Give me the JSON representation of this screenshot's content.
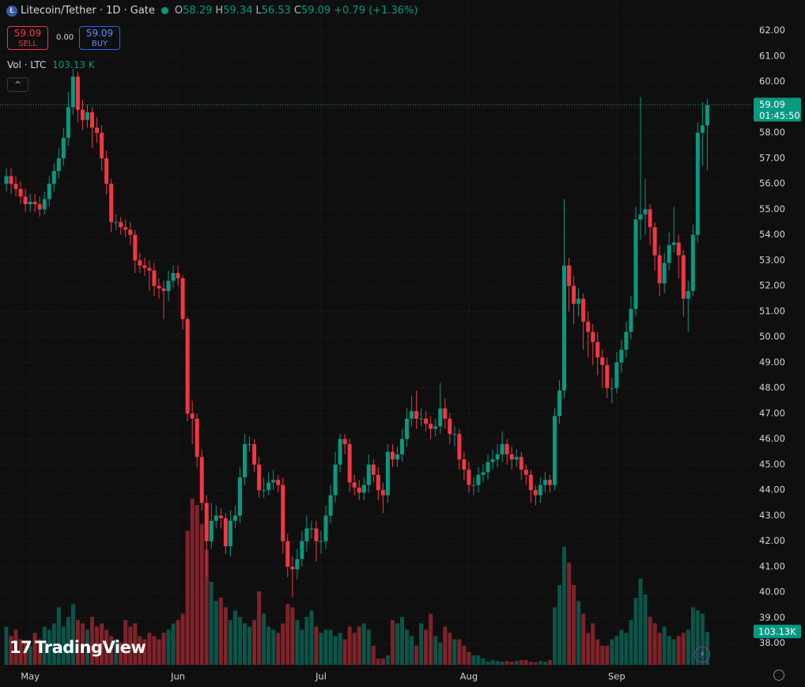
{
  "chart_data": {
    "type": "candlestick",
    "title": "Litecoin/Tether · 1D · Gate",
    "legend": {
      "o_label": "O",
      "open": 58.29,
      "h_label": "H",
      "high": 59.34,
      "l_label": "L",
      "low": 56.53,
      "c_label": "C",
      "close": 59.09,
      "change": "+0.79 (+1.36%)"
    },
    "trade_panel": {
      "sell_price": "59.09",
      "sell_label": "SELL",
      "spread": "0.00",
      "buy_price": "59.09",
      "buy_label": "BUY"
    },
    "volume_legend": {
      "label": "Vol · LTC",
      "value": "103.13 K"
    },
    "last_price_tag": {
      "price": "59.09",
      "countdown": "01:45:50"
    },
    "volume_tag": "103.13K",
    "brand": "TradingView",
    "up_color": "#089981",
    "down_color": "#f23645",
    "ylim": [
      37.0,
      63.2
    ],
    "yticks": [
      {
        "value": 38,
        "label": "38.00"
      },
      {
        "value": 39,
        "label": "39.00"
      },
      {
        "value": 40,
        "label": "40.00"
      },
      {
        "value": 41,
        "label": "41.00"
      },
      {
        "value": 42,
        "label": "42.00"
      },
      {
        "value": 43,
        "label": "43.00"
      },
      {
        "value": 44,
        "label": "44.00"
      },
      {
        "value": 45,
        "label": "45.00"
      },
      {
        "value": 46,
        "label": "46.00"
      },
      {
        "value": 47,
        "label": "47.00"
      },
      {
        "value": 48,
        "label": "48.00"
      },
      {
        "value": 49,
        "label": "49.00"
      },
      {
        "value": 50,
        "label": "50.00"
      },
      {
        "value": 51,
        "label": "51.00"
      },
      {
        "value": 52,
        "label": "52.00"
      },
      {
        "value": 53,
        "label": "53.00"
      },
      {
        "value": 54,
        "label": "54.00"
      },
      {
        "value": 55,
        "label": "55.00"
      },
      {
        "value": 56,
        "label": "56.00"
      },
      {
        "value": 57,
        "label": "57.00"
      },
      {
        "value": 58,
        "label": "58.00"
      },
      {
        "value": 59,
        "label": "59.00"
      },
      {
        "value": 60,
        "label": "60.00"
      },
      {
        "value": 61,
        "label": "61.00"
      },
      {
        "value": 62,
        "label": "62.00"
      }
    ],
    "xticks": [
      {
        "value": 5,
        "label": "May"
      },
      {
        "value": 36,
        "label": "Jun"
      },
      {
        "value": 66,
        "label": "Jul"
      },
      {
        "value": 97,
        "label": "Aug"
      },
      {
        "value": 128,
        "label": "Sep"
      }
    ],
    "grid": true,
    "open": [
      56.0,
      56.3,
      56.0,
      55.8,
      55.5,
      55.2,
      55.3,
      55.2,
      55.0,
      55.4,
      56.0,
      56.5,
      57.0,
      57.8,
      59.0,
      60.2,
      58.9,
      58.5,
      58.8,
      58.2,
      58.0,
      57.0,
      56.0,
      54.5,
      54.5,
      54.3,
      54.2,
      54.0,
      53.0,
      52.8,
      52.7,
      52.6,
      52.0,
      51.9,
      51.8,
      52.2,
      52.5,
      52.3,
      50.7,
      47.0,
      46.8,
      45.3,
      43.5,
      42.0,
      42.8,
      43.0,
      42.9,
      41.8,
      42.8,
      43.0,
      44.5,
      45.8,
      45.8,
      45.0,
      44.0,
      44.0,
      44.3,
      44.4,
      44.2,
      42.0,
      41.0,
      40.9,
      41.3,
      42.0,
      42.5,
      42.5,
      42.0,
      42.0,
      43.0,
      43.8,
      45.0,
      46.0,
      45.8,
      44.3,
      44.1,
      43.9,
      44.2,
      45.0,
      44.6,
      44.0,
      43.8,
      45.5,
      45.2,
      45.4,
      46.0,
      46.8,
      47.1,
      46.8,
      46.8,
      46.6,
      46.4,
      46.5,
      47.2,
      46.8,
      46.2,
      46.2,
      45.2,
      44.8,
      44.2,
      44.2,
      44.6,
      44.7,
      45.1,
      45.2,
      45.4,
      45.8,
      45.4,
      45.2,
      45.3,
      44.8,
      44.6,
      44.0,
      43.8,
      44.2,
      44.4,
      44.2,
      46.9,
      47.9,
      52.8,
      52.0,
      51.3,
      51.5,
      50.6,
      50.2,
      49.8,
      49.2,
      48.9,
      48.0,
      48.0,
      49.0,
      49.5,
      50.2,
      51.1,
      54.6,
      54.8,
      55.0,
      54.3,
      53.2,
      52.1,
      52.9,
      53.6,
      53.7,
      53.2,
      51.5,
      51.8,
      54.0,
      58.0,
      58.29
    ],
    "high": [
      56.6,
      56.6,
      56.3,
      56.1,
      55.8,
      55.6,
      55.6,
      55.5,
      55.7,
      56.3,
      56.8,
      57.4,
      58.2,
      59.6,
      60.5,
      60.4,
      59.3,
      59.1,
      59.0,
      58.6,
      58.3,
      57.3,
      56.2,
      54.8,
      54.7,
      54.6,
      54.5,
      54.2,
      53.3,
      53.1,
      53.0,
      52.9,
      52.3,
      52.2,
      52.6,
      52.8,
      52.8,
      52.4,
      50.8,
      47.5,
      47.0,
      45.6,
      43.8,
      43.5,
      43.4,
      43.3,
      43.1,
      43.2,
      43.4,
      44.9,
      46.2,
      46.1,
      46.0,
      45.3,
      44.5,
      44.7,
      44.8,
      44.6,
      44.5,
      42.3,
      41.4,
      41.7,
      42.4,
      43.0,
      42.8,
      42.8,
      42.4,
      43.4,
      44.2,
      45.5,
      46.2,
      46.2,
      46.0,
      44.6,
      44.4,
      44.5,
      45.4,
      45.2,
      44.9,
      44.3,
      45.8,
      45.8,
      45.7,
      46.4,
      47.2,
      47.7,
      47.9,
      47.2,
      47.1,
      46.9,
      46.8,
      48.2,
      47.6,
      47.0,
      46.5,
      46.4,
      45.5,
      45.1,
      44.5,
      44.9,
      45.0,
      45.4,
      45.6,
      45.8,
      46.3,
      46.0,
      45.7,
      45.6,
      45.5,
      45.0,
      44.8,
      44.2,
      44.5,
      44.7,
      44.6,
      47.2,
      48.3,
      55.4,
      53.1,
      52.4,
      51.9,
      51.7,
      51.0,
      50.5,
      50.2,
      49.5,
      49.2,
      48.4,
      49.4,
      49.9,
      50.6,
      51.6,
      55.1,
      59.4,
      56.2,
      55.2,
      54.5,
      53.6,
      53.3,
      54.1,
      55.1,
      54.0,
      53.4,
      52.2,
      54.4,
      58.4,
      59.2,
      59.34
    ],
    "low": [
      55.7,
      55.6,
      55.5,
      55.2,
      54.9,
      54.9,
      54.9,
      54.7,
      54.8,
      55.1,
      55.7,
      56.2,
      56.7,
      57.5,
      58.7,
      58.4,
      58.1,
      58.2,
      57.4,
      57.6,
      56.5,
      55.6,
      54.1,
      54.2,
      54.0,
      53.9,
      53.6,
      52.5,
      52.5,
      52.4,
      51.8,
      51.6,
      51.5,
      50.7,
      51.4,
      51.9,
      52.0,
      50.3,
      46.7,
      45.8,
      44.9,
      43.2,
      40.6,
      41.7,
      42.5,
      42.5,
      41.5,
      41.4,
      42.5,
      42.7,
      44.2,
      45.5,
      44.7,
      43.7,
      43.7,
      43.8,
      44.0,
      43.9,
      41.5,
      40.6,
      39.8,
      40.5,
      41.0,
      41.6,
      42.1,
      41.2,
      41.5,
      41.7,
      42.7,
      43.5,
      44.7,
      45.4,
      43.9,
      43.8,
      43.6,
      43.6,
      43.9,
      44.3,
      43.6,
      43.1,
      43.5,
      44.9,
      44.9,
      45.1,
      45.7,
      46.5,
      46.4,
      46.5,
      46.3,
      46.0,
      46.1,
      46.2,
      46.4,
      45.8,
      45.7,
      44.8,
      44.4,
      43.9,
      43.8,
      43.9,
      44.3,
      44.4,
      44.8,
      44.9,
      45.1,
      45.0,
      44.8,
      44.9,
      44.4,
      44.2,
      43.5,
      43.4,
      43.5,
      43.9,
      43.9,
      44.0,
      46.6,
      47.6,
      51.0,
      50.5,
      50.8,
      49.5,
      49.2,
      48.9,
      48.5,
      48.0,
      47.6,
      47.4,
      47.8,
      48.6,
      49.2,
      49.9,
      50.8,
      53.8,
      54.0,
      53.6,
      52.6,
      51.6,
      51.7,
      52.6,
      53.3,
      52.3,
      50.8,
      50.2,
      51.6,
      53.7,
      56.7,
      56.53
    ],
    "close": [
      56.3,
      56.0,
      55.8,
      55.5,
      55.2,
      55.3,
      55.2,
      55.0,
      55.4,
      56.0,
      56.5,
      57.0,
      57.8,
      59.0,
      60.2,
      58.9,
      58.5,
      58.8,
      58.2,
      58.0,
      57.0,
      56.0,
      54.5,
      54.5,
      54.3,
      54.2,
      54.0,
      53.0,
      52.8,
      52.7,
      52.6,
      52.0,
      51.9,
      51.8,
      52.2,
      52.5,
      52.3,
      50.7,
      47.0,
      46.8,
      45.3,
      43.5,
      42.0,
      42.8,
      43.0,
      42.9,
      41.8,
      42.8,
      43.0,
      44.5,
      45.8,
      45.8,
      45.0,
      44.0,
      44.0,
      44.3,
      44.4,
      44.2,
      42.0,
      41.0,
      40.9,
      41.3,
      42.0,
      42.5,
      42.5,
      42.0,
      42.0,
      43.0,
      43.8,
      45.0,
      46.0,
      45.8,
      44.3,
      44.1,
      43.9,
      44.2,
      45.0,
      44.6,
      44.0,
      43.8,
      45.5,
      45.2,
      45.4,
      46.0,
      46.8,
      47.1,
      46.8,
      46.8,
      46.6,
      46.4,
      46.5,
      47.2,
      46.8,
      46.2,
      46.2,
      45.2,
      44.8,
      44.2,
      44.2,
      44.6,
      44.7,
      45.1,
      45.2,
      45.4,
      45.8,
      45.4,
      45.2,
      45.3,
      44.8,
      44.6,
      44.0,
      43.8,
      44.2,
      44.4,
      44.2,
      46.9,
      47.9,
      52.8,
      52.0,
      51.3,
      51.5,
      50.6,
      50.2,
      49.8,
      49.2,
      48.9,
      48.0,
      48.0,
      49.0,
      49.5,
      50.2,
      51.1,
      54.6,
      54.8,
      55.0,
      54.3,
      53.2,
      52.1,
      52.9,
      53.6,
      53.7,
      53.2,
      51.5,
      51.8,
      54.0,
      58.0,
      58.29,
      59.09
    ],
    "volume": [
      120,
      90,
      110,
      80,
      70,
      60,
      100,
      80,
      120,
      110,
      130,
      180,
      120,
      150,
      190,
      140,
      130,
      110,
      150,
      120,
      130,
      110,
      90,
      80,
      70,
      140,
      120,
      130,
      90,
      80,
      100,
      90,
      80,
      100,
      110,
      130,
      140,
      160,
      420,
      520,
      500,
      440,
      360,
      260,
      200,
      210,
      180,
      140,
      170,
      150,
      130,
      120,
      140,
      230,
      160,
      120,
      110,
      100,
      130,
      190,
      180,
      140,
      110,
      150,
      170,
      120,
      100,
      110,
      110,
      90,
      100,
      80,
      120,
      100,
      120,
      130,
      110,
      60,
      20,
      20,
      30,
      140,
      130,
      150,
      110,
      90,
      60,
      130,
      110,
      160,
      90,
      70,
      120,
      100,
      80,
      80,
      60,
      40,
      30,
      30,
      20,
      10,
      15,
      12,
      10,
      12,
      10,
      12,
      15,
      15,
      10,
      8,
      12,
      10,
      15,
      180,
      250,
      370,
      320,
      250,
      200,
      160,
      100,
      130,
      80,
      60,
      60,
      80,
      90,
      110,
      100,
      140,
      210,
      270,
      220,
      150,
      130,
      100,
      120,
      90,
      80,
      90,
      100,
      110,
      180,
      170,
      160,
      103.13
    ]
  }
}
